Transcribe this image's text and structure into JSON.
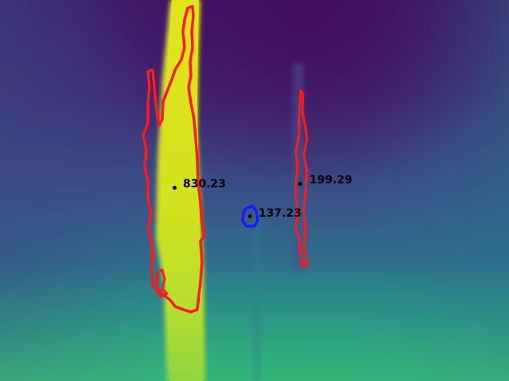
{
  "image": {
    "description_colors": {
      "background_top": "#45106b",
      "background_mid": "#3b528b",
      "background_bottom": "#21918c",
      "hot": "#d8e219",
      "hot_lower": "#9bd93c"
    },
    "outline_colors": {
      "primary": "#ff1a1a",
      "secondary": "#1a1aff"
    }
  },
  "annotations": [
    {
      "id": "left-column",
      "value": "830.23",
      "outline": "primary"
    },
    {
      "id": "small-blob",
      "value": "137.23",
      "outline": "secondary"
    },
    {
      "id": "right-column",
      "value": "199.29",
      "outline": "primary"
    }
  ]
}
